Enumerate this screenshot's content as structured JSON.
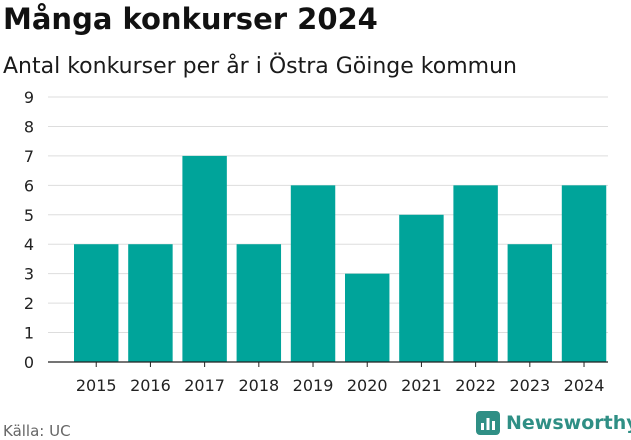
{
  "colors": {
    "bar": "#00a49a",
    "grid": "#dddddd",
    "axis": "#222222",
    "brand": "#2f8f85"
  },
  "source": "Källa: UC",
  "brand": {
    "name": "Newsworthy",
    "icon": "bar-chart-icon"
  },
  "chart_data": {
    "type": "bar",
    "title": "Många konkurser 2024",
    "subtitle": "Antal konkurser per år i Östra Göinge kommun",
    "xlabel": "",
    "ylabel": "",
    "categories": [
      "2015",
      "2016",
      "2017",
      "2018",
      "2019",
      "2020",
      "2021",
      "2022",
      "2023",
      "2024"
    ],
    "values": [
      4,
      4,
      7,
      4,
      6,
      3,
      5,
      6,
      4,
      6
    ],
    "ylim": [
      0,
      9
    ],
    "yticks": [
      "0",
      "1",
      "2",
      "3",
      "4",
      "5",
      "6",
      "7",
      "8",
      "9"
    ],
    "grid": true,
    "legend": "none"
  }
}
